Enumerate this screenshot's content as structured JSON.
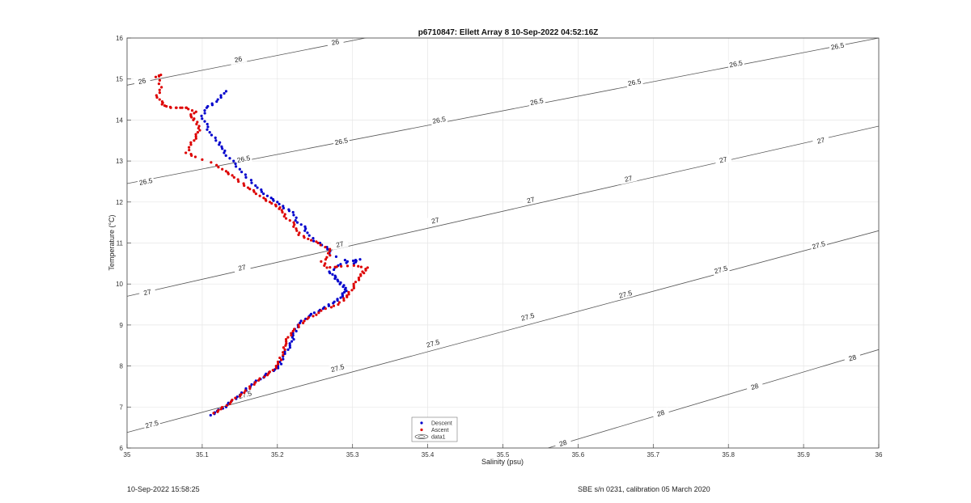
{
  "footer": {
    "left": "10-Sep-2022 15:58:25",
    "right": "SBE s/n 0231, calibration 05 March 2020"
  },
  "chart_data": {
    "type": "scatter",
    "title": "p6710847: Ellett Array 8 10-Sep-2022 04:52:16Z",
    "xlabel": "Salinity (psu)",
    "ylabel": "Temperature (°C)",
    "xlim": [
      35,
      36
    ],
    "ylim": [
      6,
      16
    ],
    "xticks": [
      "35",
      "35.1",
      "35.2",
      "35.3",
      "35.4",
      "35.5",
      "35.6",
      "35.7",
      "35.8",
      "35.9",
      "36"
    ],
    "yticks": [
      "6",
      "7",
      "8",
      "9",
      "10",
      "11",
      "12",
      "13",
      "14",
      "15",
      "16"
    ],
    "grid": true,
    "legend": {
      "placement": "bottom-center",
      "entries": [
        "Descent",
        "Ascent",
        "data1"
      ]
    },
    "colors": {
      "descent": "#0000cc",
      "ascent": "#dd0000",
      "contour": "#555555"
    },
    "contours": [
      {
        "level": "26",
        "points": [
          [
            35,
            14.85
          ],
          [
            35.35,
            16.12
          ]
        ],
        "labels": [
          [
            35.02,
            14.95
          ],
          [
            35.148,
            15.48
          ],
          [
            35.277,
            15.9
          ]
        ]
      },
      {
        "level": "26.5",
        "points": [
          [
            35,
            12.45
          ],
          [
            36,
            16.0
          ]
        ],
        "labels": [
          [
            35.025,
            12.5
          ],
          [
            35.155,
            13.05
          ],
          [
            35.285,
            13.48
          ],
          [
            35.415,
            14.0
          ],
          [
            35.545,
            14.45
          ],
          [
            35.675,
            14.92
          ],
          [
            35.81,
            15.37
          ],
          [
            35.945,
            15.8
          ]
        ]
      },
      {
        "level": "27",
        "points": [
          [
            35,
            9.7
          ],
          [
            36,
            13.85
          ]
        ],
        "labels": [
          [
            35.027,
            9.8
          ],
          [
            35.153,
            10.4
          ],
          [
            35.283,
            10.97
          ],
          [
            35.41,
            11.55
          ],
          [
            35.537,
            12.05
          ],
          [
            35.667,
            12.57
          ],
          [
            35.793,
            13.03
          ],
          [
            35.923,
            13.5
          ]
        ]
      },
      {
        "level": "27.5",
        "points": [
          [
            35,
            6.38
          ],
          [
            36,
            11.3
          ]
        ],
        "labels": [
          [
            35.033,
            6.58
          ],
          [
            35.157,
            7.3
          ],
          [
            35.28,
            7.95
          ],
          [
            35.407,
            8.55
          ],
          [
            35.533,
            9.2
          ],
          [
            35.663,
            9.75
          ],
          [
            35.79,
            10.35
          ],
          [
            35.92,
            10.95
          ]
        ]
      },
      {
        "level": "28",
        "points": [
          [
            35.56,
            6.0
          ],
          [
            36,
            8.4
          ]
        ],
        "labels": [
          [
            35.58,
            6.12
          ],
          [
            35.71,
            6.85
          ],
          [
            35.835,
            7.5
          ],
          [
            35.965,
            8.2
          ]
        ]
      }
    ],
    "series": [
      {
        "name": "Descent",
        "points": [
          [
            35.113,
            6.8
          ],
          [
            35.12,
            6.9
          ],
          [
            35.13,
            7.0
          ],
          [
            35.14,
            7.15
          ],
          [
            35.15,
            7.3
          ],
          [
            35.16,
            7.45
          ],
          [
            35.17,
            7.6
          ],
          [
            35.18,
            7.72
          ],
          [
            35.19,
            7.85
          ],
          [
            35.2,
            7.95
          ],
          [
            35.205,
            8.1
          ],
          [
            35.21,
            8.3
          ],
          [
            35.215,
            8.45
          ],
          [
            35.22,
            8.6
          ],
          [
            35.22,
            8.75
          ],
          [
            35.225,
            8.9
          ],
          [
            35.23,
            9.05
          ],
          [
            35.24,
            9.2
          ],
          [
            35.25,
            9.3
          ],
          [
            35.26,
            9.4
          ],
          [
            35.27,
            9.5
          ],
          [
            35.28,
            9.6
          ],
          [
            35.285,
            9.7
          ],
          [
            35.29,
            9.8
          ],
          [
            35.29,
            9.9
          ],
          [
            35.285,
            10.0
          ],
          [
            35.28,
            10.1
          ],
          [
            35.275,
            10.2
          ],
          [
            35.27,
            10.3
          ],
          [
            35.28,
            10.45
          ],
          [
            35.295,
            10.55
          ],
          [
            35.31,
            10.6
          ],
          [
            35.3,
            10.5
          ],
          [
            35.27,
            10.75
          ],
          [
            35.265,
            10.9
          ],
          [
            35.25,
            11.05
          ],
          [
            35.24,
            11.25
          ],
          [
            35.235,
            11.4
          ],
          [
            35.225,
            11.55
          ],
          [
            35.22,
            11.75
          ],
          [
            35.21,
            11.85
          ],
          [
            35.2,
            12.0
          ],
          [
            35.19,
            12.1
          ],
          [
            35.18,
            12.25
          ],
          [
            35.17,
            12.4
          ],
          [
            35.16,
            12.6
          ],
          [
            35.15,
            12.8
          ],
          [
            35.14,
            13.0
          ],
          [
            35.13,
            13.2
          ],
          [
            35.125,
            13.35
          ],
          [
            35.12,
            13.5
          ],
          [
            35.11,
            13.7
          ],
          [
            35.105,
            13.9
          ],
          [
            35.1,
            14.1
          ],
          [
            35.105,
            14.3
          ],
          [
            35.115,
            14.4
          ],
          [
            35.125,
            14.55
          ],
          [
            35.13,
            14.7
          ]
        ]
      },
      {
        "name": "Ascent",
        "points": [
          [
            35.117,
            6.85
          ],
          [
            35.125,
            6.95
          ],
          [
            35.135,
            7.08
          ],
          [
            35.145,
            7.22
          ],
          [
            35.155,
            7.35
          ],
          [
            35.165,
            7.5
          ],
          [
            35.175,
            7.65
          ],
          [
            35.185,
            7.78
          ],
          [
            35.195,
            7.9
          ],
          [
            35.2,
            8.05
          ],
          [
            35.205,
            8.2
          ],
          [
            35.21,
            8.4
          ],
          [
            35.21,
            8.55
          ],
          [
            35.215,
            8.7
          ],
          [
            35.22,
            8.85
          ],
          [
            35.23,
            9.0
          ],
          [
            35.24,
            9.15
          ],
          [
            35.25,
            9.25
          ],
          [
            35.265,
            9.4
          ],
          [
            35.28,
            9.5
          ],
          [
            35.29,
            9.65
          ],
          [
            35.295,
            9.75
          ],
          [
            35.3,
            9.9
          ],
          [
            35.305,
            10.05
          ],
          [
            35.31,
            10.2
          ],
          [
            35.315,
            10.3
          ],
          [
            35.32,
            10.4
          ],
          [
            35.3,
            10.45
          ],
          [
            35.28,
            10.42
          ],
          [
            35.265,
            10.4
          ],
          [
            35.26,
            10.55
          ],
          [
            35.27,
            10.7
          ],
          [
            35.268,
            10.85
          ],
          [
            35.255,
            11.0
          ],
          [
            35.24,
            11.1
          ],
          [
            35.23,
            11.2
          ],
          [
            35.225,
            11.35
          ],
          [
            35.22,
            11.5
          ],
          [
            35.21,
            11.65
          ],
          [
            35.205,
            11.8
          ],
          [
            35.2,
            11.9
          ],
          [
            35.19,
            12.0
          ],
          [
            35.18,
            12.1
          ],
          [
            35.17,
            12.25
          ],
          [
            35.16,
            12.35
          ],
          [
            35.15,
            12.5
          ],
          [
            35.14,
            12.65
          ],
          [
            35.13,
            12.75
          ],
          [
            35.12,
            12.9
          ],
          [
            35.09,
            13.1
          ],
          [
            35.08,
            13.2
          ],
          [
            35.085,
            13.4
          ],
          [
            35.09,
            13.55
          ],
          [
            35.095,
            13.7
          ],
          [
            35.095,
            13.85
          ],
          [
            35.09,
            14.0
          ],
          [
            35.085,
            14.1
          ],
          [
            35.09,
            14.2
          ],
          [
            35.08,
            14.3
          ],
          [
            35.07,
            14.3
          ],
          [
            35.06,
            14.3
          ],
          [
            35.05,
            14.35
          ],
          [
            35.045,
            14.45
          ],
          [
            35.04,
            14.6
          ],
          [
            35.045,
            14.8
          ],
          [
            35.04,
            15.05
          ],
          [
            35.045,
            15.1
          ]
        ]
      }
    ]
  }
}
